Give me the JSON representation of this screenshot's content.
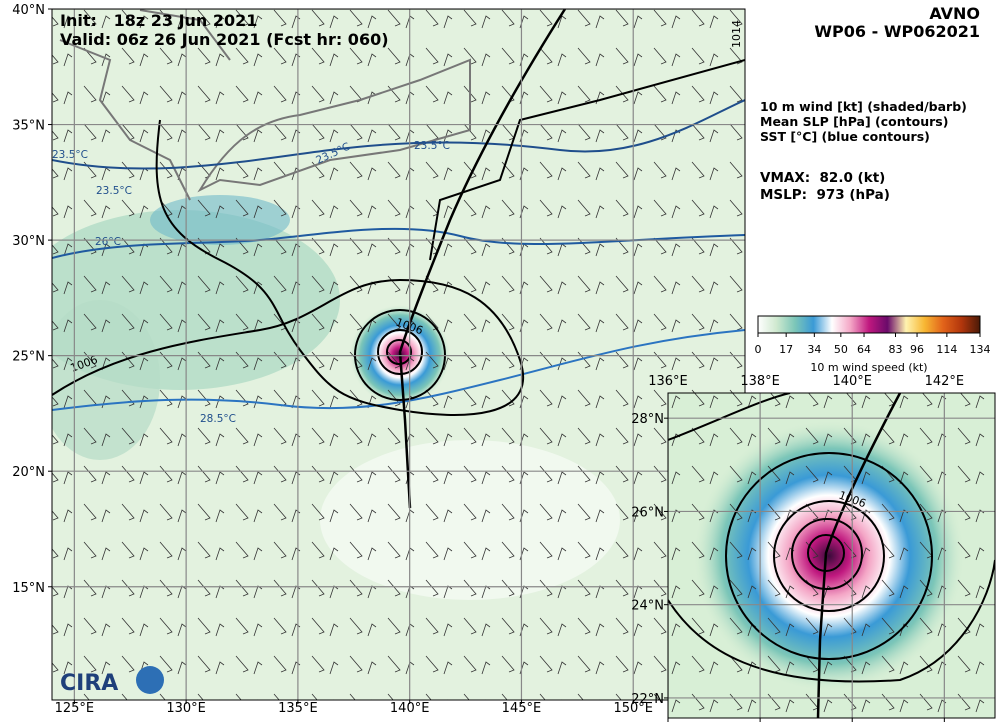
{
  "header": {
    "init": "Init:   18z 23 Jun 2021",
    "valid": "Valid: 06z 26 Jun 2021 (Fcst hr: 060)",
    "model": "AVNO",
    "storm": "WP06 - WP062021"
  },
  "legend": {
    "lines": [
      "10 m wind [kt] (shaded/barb)",
      "Mean SLP [hPa] (contours)",
      "SST [°C] (blue contours)"
    ],
    "vmax": "VMAX:  82.0 (kt)",
    "mslp": "MSLP:  973 (hPa)"
  },
  "colorbar": {
    "label": "10 m wind speed (kt)",
    "lim": [
      0,
      134
    ],
    "ticks": [
      0,
      17,
      34,
      50,
      64,
      83,
      96,
      114,
      134
    ],
    "colors": [
      "#ffffff",
      "#cfe9cf",
      "#7cc6b8",
      "#3a9ad6",
      "#ffffff",
      "#f4a6c6",
      "#c0187f",
      "#6a0a6a",
      "#fff3b0",
      "#f7b733",
      "#e2631a",
      "#b2360c",
      "#4a1a08"
    ]
  },
  "main_map": {
    "xlim": [
      124,
      155
    ],
    "ylim": [
      10.1,
      40
    ],
    "xticks": [
      {
        "value": 125,
        "label": "125°E"
      },
      {
        "value": 130,
        "label": "130°E"
      },
      {
        "value": 135,
        "label": "135°E"
      },
      {
        "value": 140,
        "label": "140°E"
      },
      {
        "value": 145,
        "label": "145°E"
      },
      {
        "value": 150,
        "label": "150°E"
      }
    ],
    "yticks": [
      {
        "value": 40,
        "label": "40°N"
      },
      {
        "value": 35,
        "label": "35°N"
      },
      {
        "value": 30,
        "label": "30°N"
      },
      {
        "value": 25,
        "label": "25°N"
      },
      {
        "value": 20,
        "label": "20°N"
      },
      {
        "value": 15,
        "label": "15°N"
      }
    ],
    "contour_labels": [
      "1006",
      "1006",
      "1014",
      "23.5°C",
      "23.5°C",
      "23.5°C",
      "23.5°C",
      "26°C",
      "28.5°C"
    ]
  },
  "inset_map": {
    "xlim": [
      136,
      143.1
    ],
    "ylim": [
      21.57,
      28.54
    ],
    "xticks": [
      {
        "value": 136,
        "label": "136°E"
      },
      {
        "value": 138,
        "label": "138°E"
      },
      {
        "value": 140,
        "label": "140°E"
      },
      {
        "value": 142,
        "label": "142°E"
      }
    ],
    "yticks": [
      {
        "value": 28,
        "label": "28°N"
      },
      {
        "value": 26,
        "label": "26°N"
      },
      {
        "value": 24,
        "label": "24°N"
      },
      {
        "value": 22,
        "label": "22°N"
      }
    ],
    "contour_labels": [
      "1006"
    ]
  },
  "logo": "CIRA"
}
